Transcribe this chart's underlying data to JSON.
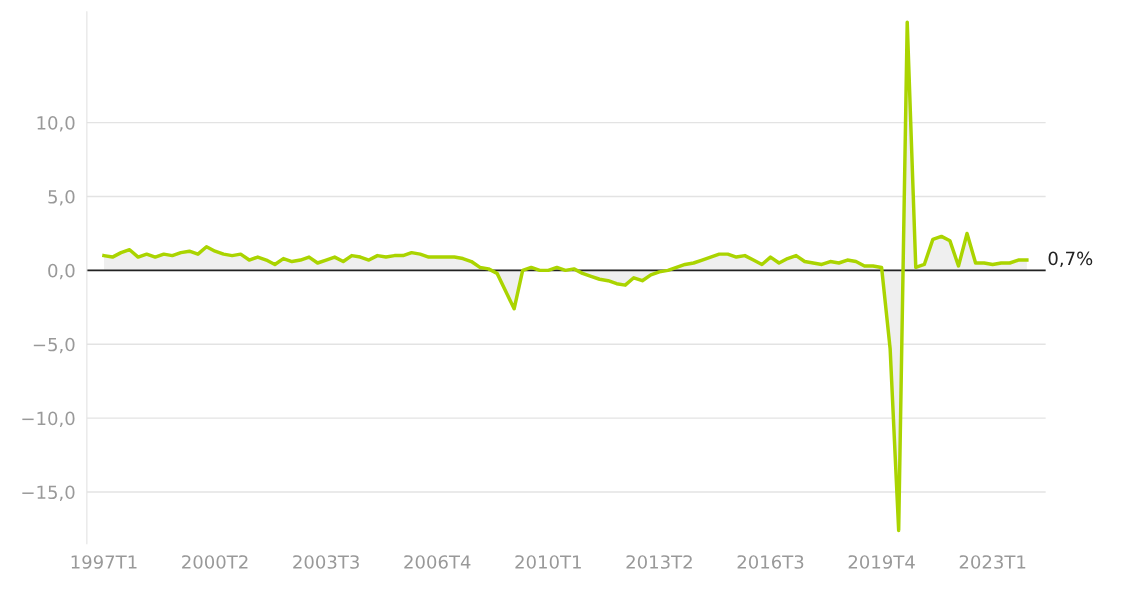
{
  "chart_data": {
    "type": "area",
    "categories": [
      "1997T1",
      null,
      null,
      null,
      null,
      null,
      null,
      null,
      null,
      null,
      null,
      null,
      null,
      "2000T2",
      null,
      null,
      null,
      null,
      null,
      null,
      null,
      null,
      null,
      null,
      null,
      null,
      "2003T3",
      null,
      null,
      null,
      null,
      null,
      null,
      null,
      null,
      null,
      null,
      null,
      null,
      "2006T4",
      null,
      null,
      null,
      null,
      null,
      null,
      null,
      null,
      null,
      null,
      null,
      null,
      "2010T1",
      null,
      null,
      null,
      null,
      null,
      null,
      null,
      null,
      null,
      null,
      null,
      null,
      "2013T2",
      null,
      null,
      null,
      null,
      null,
      null,
      null,
      null,
      null,
      null,
      null,
      null,
      "2016T3",
      null,
      null,
      null,
      null,
      null,
      null,
      null,
      null,
      null,
      null,
      null,
      null,
      "2019T4",
      null,
      null,
      null,
      null,
      null,
      null,
      null,
      null,
      null,
      null,
      null,
      null,
      "2023T1",
      null,
      null,
      null,
      null
    ],
    "series": [
      {
        "color": "#aad400",
        "values": [
          1.0,
          0.9,
          1.2,
          1.4,
          0.9,
          1.1,
          0.9,
          1.1,
          1.0,
          1.2,
          1.3,
          1.1,
          1.6,
          1.3,
          1.1,
          1.0,
          1.1,
          0.7,
          0.9,
          0.7,
          0.4,
          0.8,
          0.6,
          0.7,
          0.9,
          0.5,
          0.7,
          0.9,
          0.6,
          1.0,
          0.9,
          0.7,
          1.0,
          0.9,
          1.0,
          1.0,
          1.2,
          1.1,
          0.9,
          0.9,
          0.9,
          0.9,
          0.8,
          0.6,
          0.2,
          0.1,
          -0.2,
          -1.4,
          -2.6,
          0.0,
          0.2,
          0.0,
          0.0,
          0.2,
          0.0,
          0.1,
          -0.2,
          -0.4,
          -0.6,
          -0.7,
          -0.9,
          -1.0,
          -0.5,
          -0.7,
          -0.3,
          -0.1,
          0.0,
          0.2,
          0.4,
          0.5,
          0.7,
          0.9,
          1.1,
          1.1,
          0.9,
          1.0,
          0.7,
          0.4,
          0.9,
          0.5,
          0.8,
          1.0,
          0.6,
          0.5,
          0.4,
          0.6,
          0.5,
          0.7,
          0.6,
          0.3,
          0.3,
          0.2,
          -5.3,
          -17.6,
          16.8,
          0.2,
          0.4,
          2.1,
          2.3,
          2.0,
          0.3,
          2.5,
          0.5,
          0.5,
          0.4,
          0.5,
          0.5,
          0.7,
          0.7
        ]
      }
    ],
    "ylim": [
      -18.5,
      17.5
    ],
    "yticks": [
      {
        "value": -15,
        "label": "−15,0"
      },
      {
        "value": -10,
        "label": "−10,0"
      },
      {
        "value": -5,
        "label": "−5,0"
      },
      {
        "value": 0,
        "label": "0,0"
      },
      {
        "value": 5,
        "label": "5,0"
      },
      {
        "value": 10,
        "label": "10,0"
      }
    ],
    "grid": "y",
    "ref_lines": [
      {
        "axis": "y",
        "value": 0,
        "color": "#222222"
      }
    ],
    "annotations": [
      "0,7%"
    ],
    "legend": false
  }
}
